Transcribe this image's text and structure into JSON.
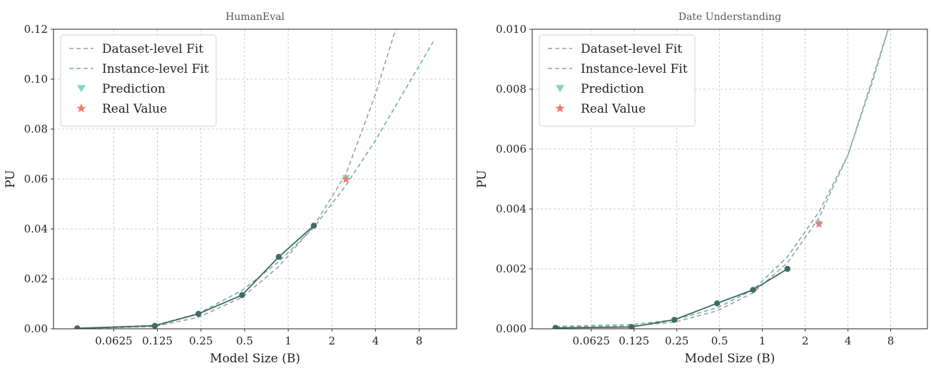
{
  "chart_data": [
    {
      "type": "line",
      "title": "HumanEval",
      "xlabel": "Model Size (B)",
      "ylabel": "PU",
      "x_scale": "log2",
      "xlim": [
        0.024,
        14.5
      ],
      "ylim": [
        0,
        0.12
      ],
      "xticks": [
        0.0625,
        0.125,
        0.25,
        0.5,
        1,
        2,
        4,
        8
      ],
      "xtick_labels": [
        "0.0625",
        "0.125",
        "0.25",
        "0.5",
        "1",
        "2",
        "4",
        "8"
      ],
      "yticks": [
        0,
        0.02,
        0.04,
        0.06,
        0.08,
        0.1,
        0.12
      ],
      "ytick_labels": [
        "0.00",
        "0.02",
        "0.04",
        "0.06",
        "0.08",
        "0.10",
        "0.12"
      ],
      "grid": true,
      "legend_position": "top-left",
      "legend": [
        "Dataset-level Fit",
        "Instance-level Fit",
        "Prediction",
        "Real Value"
      ],
      "series": [
        {
          "kind": "observed",
          "x": [
            0.035,
            0.12,
            0.24,
            0.48,
            0.86,
            1.5
          ],
          "y": [
            0.0002,
            0.0012,
            0.006,
            0.0135,
            0.0288,
            0.0413
          ]
        },
        {
          "kind": "dataset-fit",
          "x": [
            0.035,
            0.12,
            0.24,
            0.48,
            0.86,
            1.5,
            2.5,
            4,
            5.5
          ],
          "y": [
            0.0001,
            0.0009,
            0.0046,
            0.0126,
            0.0249,
            0.0412,
            0.062,
            0.094,
            0.12
          ]
        },
        {
          "kind": "instance-fit",
          "x": [
            0.035,
            0.12,
            0.24,
            0.48,
            0.86,
            1.5,
            2.5,
            4,
            6,
            10
          ],
          "y": [
            0.0001,
            0.0014,
            0.0061,
            0.0154,
            0.0269,
            0.0405,
            0.0575,
            0.0755,
            0.093,
            0.115
          ]
        },
        {
          "kind": "prediction",
          "x": [
            2.5
          ],
          "y": [
            0.0603
          ]
        },
        {
          "kind": "real",
          "x": [
            2.5
          ],
          "y": [
            0.0598
          ]
        }
      ]
    },
    {
      "type": "line",
      "title": "Date Understanding",
      "xlabel": "Model Size (B)",
      "ylabel": "PU",
      "x_scale": "log2",
      "xlim": [
        0.024,
        14.5
      ],
      "ylim": [
        0,
        0.01
      ],
      "xticks": [
        0.0625,
        0.125,
        0.25,
        0.5,
        1,
        2,
        4,
        8
      ],
      "xtick_labels": [
        "0.0625",
        "0.125",
        "0.25",
        "0.5",
        "1",
        "2",
        "4",
        "8"
      ],
      "yticks": [
        0,
        0.002,
        0.004,
        0.006,
        0.008,
        0.01
      ],
      "ytick_labels": [
        "0.000",
        "0.002",
        "0.004",
        "0.006",
        "0.008",
        "0.010"
      ],
      "grid": true,
      "legend_position": "top-left",
      "legend": [
        "Dataset-level Fit",
        "Instance-level Fit",
        "Prediction",
        "Real Value"
      ],
      "series": [
        {
          "kind": "observed",
          "x": [
            0.035,
            0.12,
            0.24,
            0.48,
            0.86,
            1.5
          ],
          "y": [
            3e-05,
            6e-05,
            0.0003,
            0.00085,
            0.0013,
            0.002
          ]
        },
        {
          "kind": "dataset-fit",
          "x": [
            0.035,
            0.12,
            0.24,
            0.48,
            0.86,
            1.5,
            2.5,
            4,
            6,
            7.8
          ],
          "y": [
            5e-05,
            9e-05,
            0.00022,
            0.0006,
            0.0012,
            0.0022,
            0.0037,
            0.0058,
            0.0084,
            0.0101
          ]
        },
        {
          "kind": "instance-fit",
          "x": [
            0.035,
            0.12,
            0.24,
            0.48,
            0.86,
            1.5,
            2.5,
            4,
            6,
            7.8
          ],
          "y": [
            8e-05,
            0.00014,
            0.0003,
            0.0007,
            0.0013,
            0.0024,
            0.0039,
            0.0058,
            0.0083,
            0.0101
          ]
        },
        {
          "kind": "prediction",
          "x": [
            2.5
          ],
          "y": [
            0.0035
          ]
        },
        {
          "kind": "real",
          "x": [
            2.5
          ],
          "y": [
            0.0035
          ]
        }
      ]
    }
  ],
  "colors": {
    "dataset_fit": "#9e9e9e",
    "instance_fit": "#6ab3a6",
    "observed": "#3f6b64",
    "prediction": "#7cd6cb",
    "real": "#f07e70"
  }
}
